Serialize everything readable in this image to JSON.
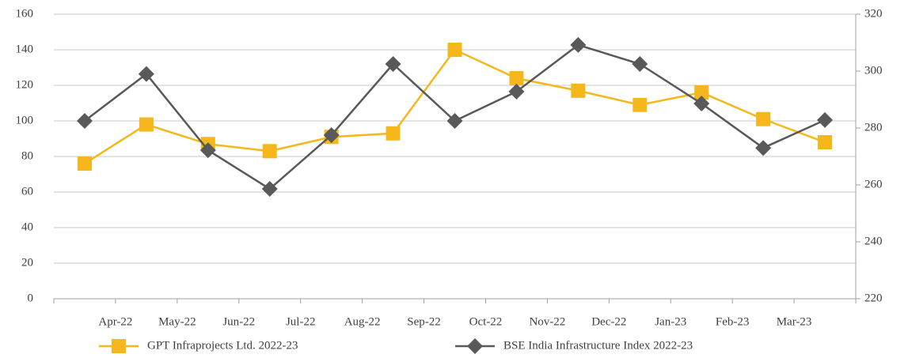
{
  "chart_data": {
    "type": "line",
    "categories": [
      null,
      "Apr-22",
      "May-22",
      "Jun-22",
      "Jul-22",
      "Aug-22",
      "Sep-22",
      "Oct-22",
      "Nov-22",
      "Dec-22",
      "Jan-23",
      "Feb-23",
      "Mar-23"
    ],
    "series": [
      {
        "name": "GPT Infraprojects Ltd. 2022-23",
        "color": "#f5b71b",
        "marker": "square",
        "values": [
          76,
          98,
          87,
          83,
          91,
          93,
          140,
          124,
          117,
          109,
          116,
          101,
          88
        ]
      },
      {
        "name": "BSE India Infrastructure Index 2022-23",
        "color": "#595959",
        "marker": "diamond",
        "axis": "y2",
        "values": [
          282.5,
          299,
          272.2,
          258.6,
          277.5,
          302.5,
          282.5,
          292.8,
          309.2,
          302.5,
          288.6,
          273,
          282.8
        ]
      }
    ],
    "ylim": [
      0,
      160
    ],
    "yticks": [
      0,
      20,
      40,
      60,
      80,
      100,
      120,
      140,
      160
    ],
    "y2lim": [
      220,
      320
    ],
    "y2ticks": [
      220,
      240,
      260,
      280,
      300,
      320
    ],
    "grid": true,
    "legend": "bottom"
  }
}
